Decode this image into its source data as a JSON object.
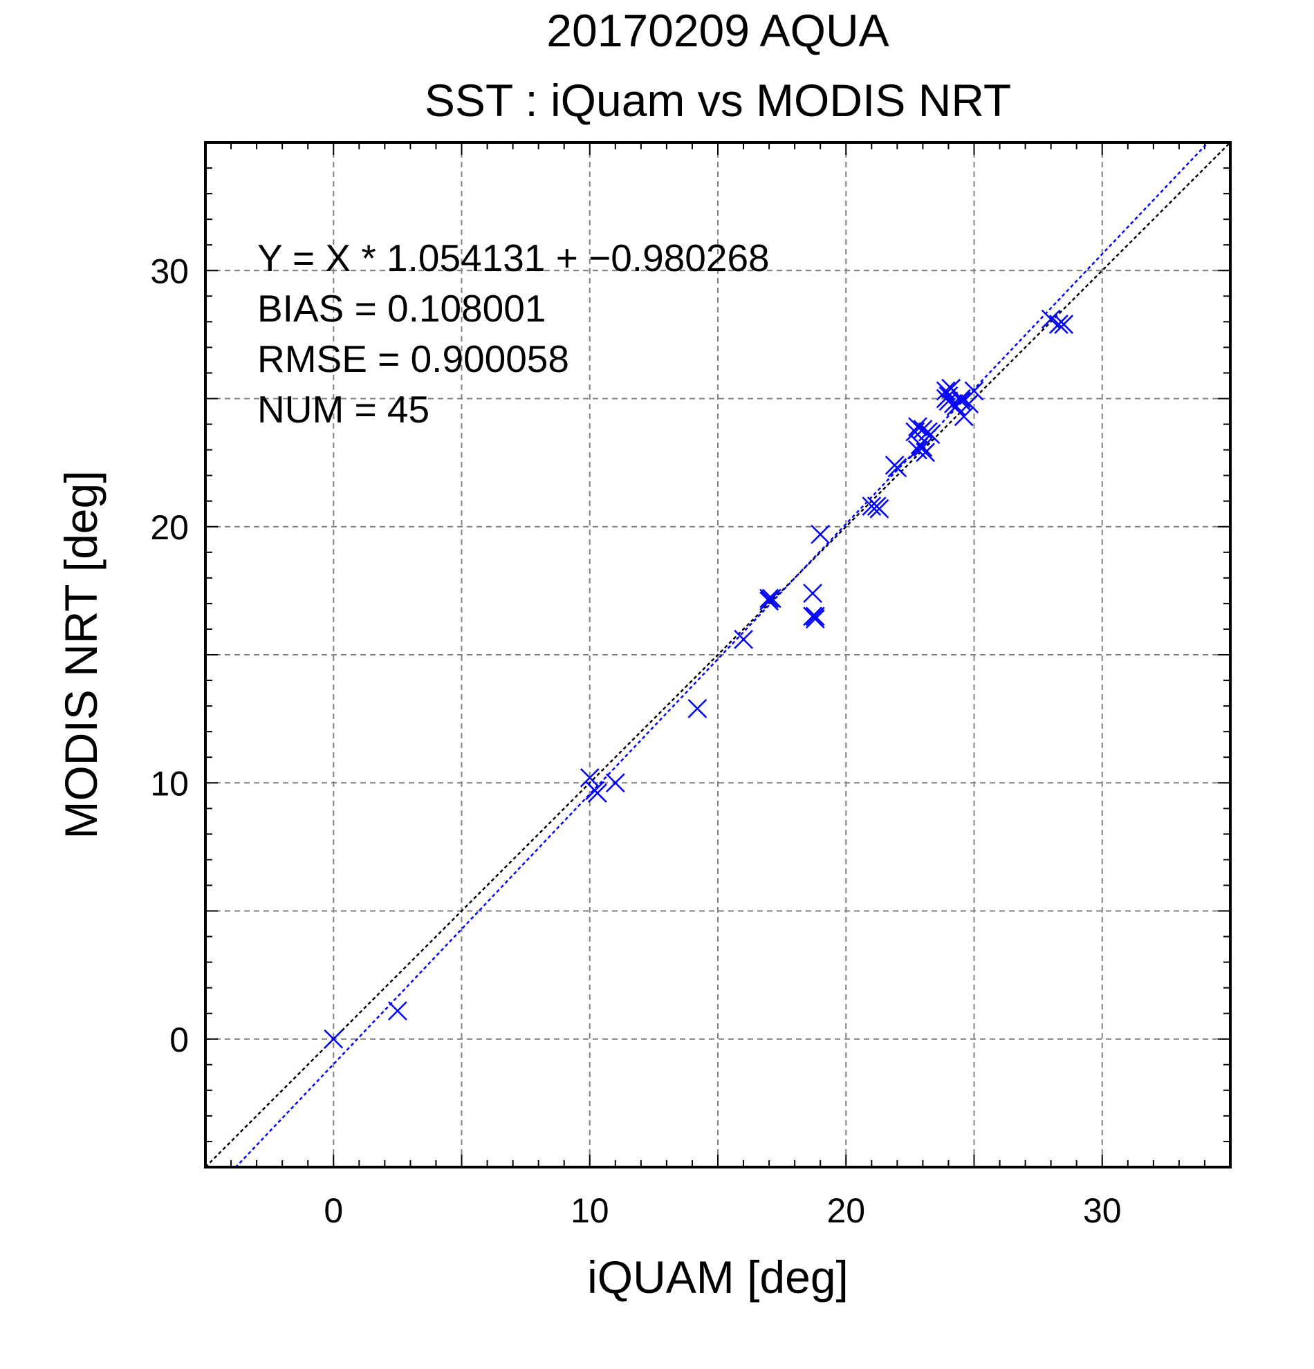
{
  "chart_data": {
    "type": "scatter",
    "title": "20170209 AQUA",
    "subtitle": "SST : iQuam vs MODIS NRT",
    "xlabel": "iQUAM [deg]",
    "ylabel": "MODIS NRT [deg]",
    "xlim": [
      -5,
      35
    ],
    "ylim": [
      -5,
      35
    ],
    "xticks": [
      0,
      10,
      20,
      30
    ],
    "yticks": [
      0,
      10,
      20,
      30
    ],
    "xtick_labels": [
      "0",
      "10",
      "20",
      "30"
    ],
    "ytick_labels": [
      "0",
      "10",
      "20",
      "30"
    ],
    "grid": true,
    "marker": "x",
    "marker_color": "#0000ff",
    "annotations": [
      "Y = X * 1.054131 + −0.980268",
      "BIAS = 0.108001",
      "RMSE = 0.900058",
      "NUM = 45"
    ],
    "reference_lines": [
      {
        "kind": "one-to-one",
        "slope": 1,
        "intercept": 0,
        "color": "#000000",
        "style": "dotted"
      },
      {
        "kind": "regression",
        "slope": 1.054131,
        "intercept": -0.980268,
        "color": "#0000ff",
        "style": "dotted"
      }
    ],
    "series": [
      {
        "x": [
          0.0,
          2.5,
          10.0,
          10.2,
          10.3,
          11.0,
          14.2,
          16.0,
          17.0,
          17.0,
          17.1,
          18.7,
          18.8,
          18.7,
          18.8,
          19.0,
          21.0,
          21.2,
          21.3,
          21.9,
          22.0,
          22.7,
          22.8,
          22.9,
          22.8,
          23.0,
          23.1,
          23.0,
          23.3,
          23.9,
          23.9,
          24.0,
          24.1,
          24.2,
          24.0,
          24.3,
          24.5,
          24.6,
          24.5,
          24.8,
          25.0,
          28.0,
          28.3,
          28.5,
          23.2
        ],
        "y": [
          0.0,
          1.1,
          10.2,
          9.7,
          9.6,
          10.0,
          12.9,
          15.6,
          17.2,
          17.1,
          17.2,
          17.4,
          16.5,
          16.5,
          16.4,
          19.7,
          20.8,
          20.8,
          20.7,
          22.4,
          22.3,
          23.7,
          23.0,
          23.2,
          23.9,
          23.8,
          22.9,
          23.1,
          23.6,
          25.0,
          25.3,
          24.9,
          25.4,
          24.8,
          25.1,
          24.7,
          24.9,
          24.3,
          25.0,
          24.8,
          25.3,
          28.1,
          27.9,
          27.9,
          23.7
        ]
      }
    ]
  }
}
